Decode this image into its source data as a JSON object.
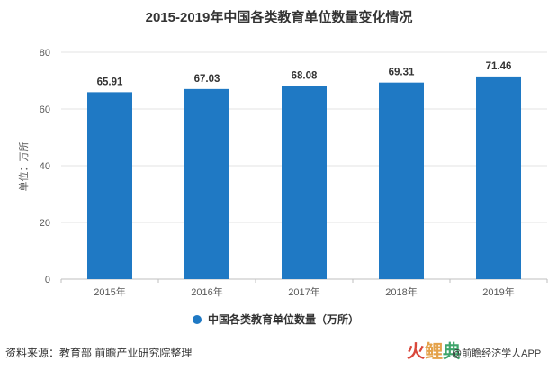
{
  "chart_data": {
    "type": "bar",
    "title": "2015-2019年中国各类教育单位数量变化情况",
    "categories": [
      "2015年",
      "2016年",
      "2017年",
      "2018年",
      "2019年"
    ],
    "series": [
      {
        "name": "中国各类教育单位数量（万所）",
        "values": [
          65.91,
          67.03,
          68.08,
          69.31,
          71.46
        ]
      }
    ],
    "value_labels": [
      "65.91",
      "67.03",
      "68.08",
      "69.31",
      "71.46"
    ],
    "ylabel": "单位：万所",
    "ylim": [
      0,
      80
    ],
    "yticks": [
      0,
      20,
      40,
      60,
      80
    ],
    "grid": true,
    "legend_position": "bottom",
    "bar_color": "#1f79c4"
  },
  "footer": {
    "source": "资料来源：教育部 前瞻产业研究院整理",
    "logo_text": "鲸 典",
    "credit": "@前瞻经济学人APP"
  }
}
